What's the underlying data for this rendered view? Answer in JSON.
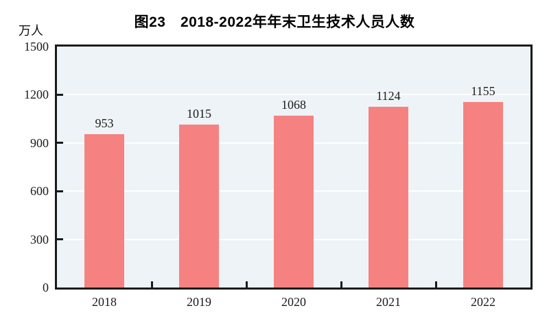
{
  "chart_data": {
    "type": "bar",
    "title": "图23　2018-2022年年末卫生技术人员人数",
    "unit_label": "万人",
    "categories": [
      "2018",
      "2019",
      "2020",
      "2021",
      "2022"
    ],
    "values": [
      953,
      1015,
      1068,
      1124,
      1155
    ],
    "series_name": "年末卫生技术人员人数",
    "xlabel": "",
    "ylabel": "万人",
    "ylim": [
      0,
      1500
    ],
    "yticks": [
      0,
      300,
      600,
      900,
      1200,
      1500
    ],
    "grid": "horizontal",
    "legend": "none",
    "data_labels_shown": true,
    "colors": {
      "bar_fill": "#f58280",
      "plot_background": "#edf3f7",
      "gridline": "#ffffff",
      "axis_frame": "#1a1a1a",
      "text": "#1a1a1a",
      "page_background": "#ffffff"
    }
  }
}
